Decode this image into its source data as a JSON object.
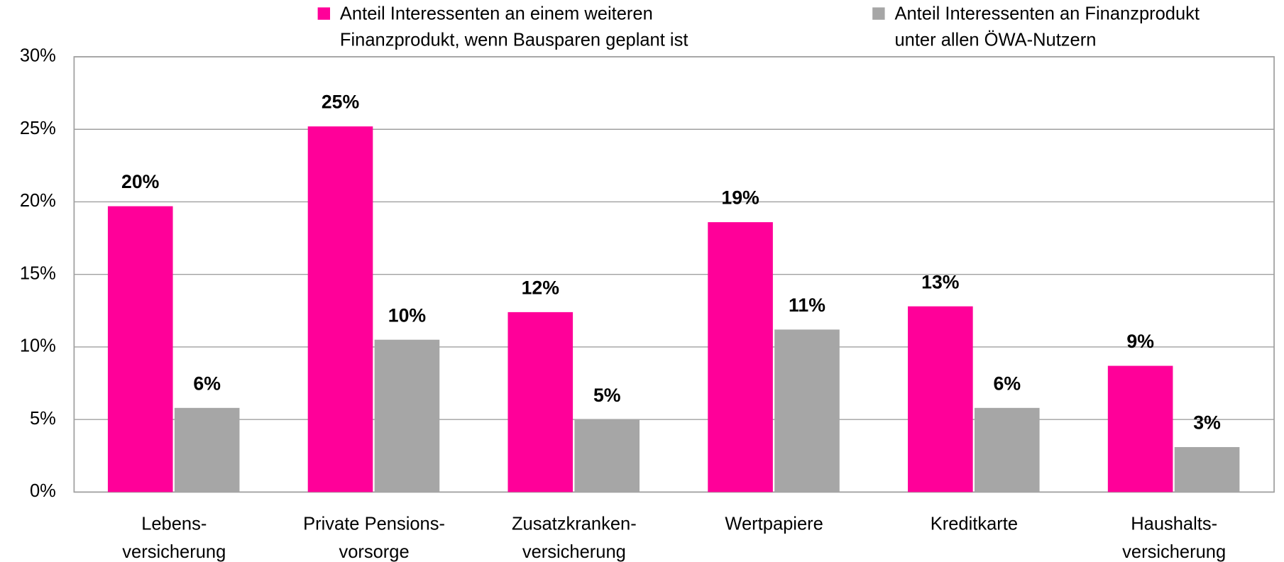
{
  "chart_data": {
    "type": "bar",
    "categories": [
      [
        "Lebens-",
        "versicherung"
      ],
      [
        "Private Pensions-",
        "vorsorge"
      ],
      [
        "Zusatzkranken-",
        "versicherung"
      ],
      [
        "Wertpapiere"
      ],
      [
        "Kreditkarte"
      ],
      [
        "Haushalts-",
        "versicherung"
      ]
    ],
    "series": [
      {
        "name": [
          "Anteil Interessenten an einem weiteren",
          "Finanzprodukt, wenn Bausparen geplant ist"
        ],
        "color": "#ff0099",
        "values": [
          19.7,
          25.2,
          12.4,
          18.6,
          12.8,
          8.7
        ],
        "value_labels": [
          "20%",
          "25%",
          "12%",
          "19%",
          "13%",
          "9%"
        ]
      },
      {
        "name": [
          "Anteil Interessenten an Finanzprodukt",
          "unter allen ÖWA-Nutzern"
        ],
        "color": "#a6a6a6",
        "values": [
          5.8,
          10.5,
          5.0,
          11.2,
          5.8,
          3.1
        ],
        "value_labels": [
          "6%",
          "10%",
          "5%",
          "11%",
          "6%",
          "3%"
        ]
      }
    ],
    "ylim": [
      0,
      30
    ],
    "yticks": [
      {
        "value": 0,
        "label": "0%"
      },
      {
        "value": 5,
        "label": "5%"
      },
      {
        "value": 10,
        "label": "10%"
      },
      {
        "value": 15,
        "label": "15%"
      },
      {
        "value": 20,
        "label": "20%"
      },
      {
        "value": 25,
        "label": "25%"
      },
      {
        "value": 30,
        "label": "30%"
      }
    ],
    "grid": true,
    "legend": "top"
  }
}
